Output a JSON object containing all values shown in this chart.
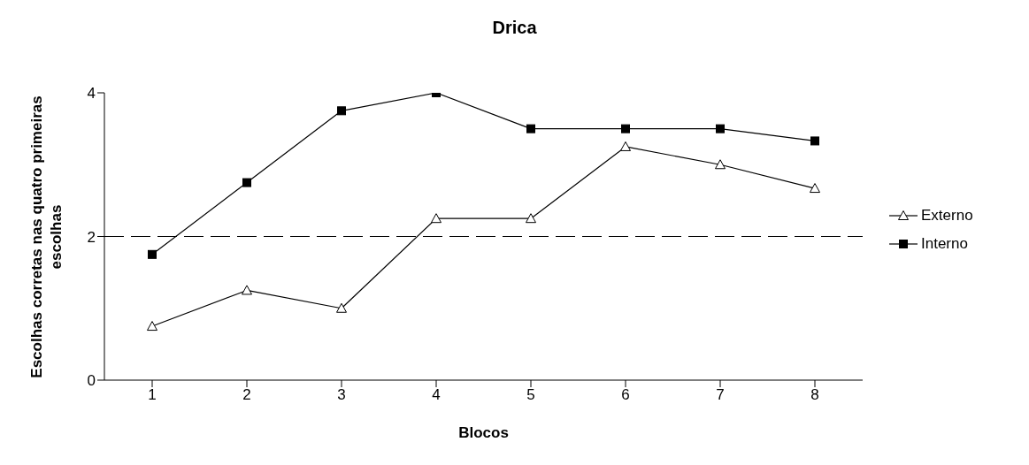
{
  "chart_data": {
    "type": "line",
    "title": "Drica",
    "xlabel": "Blocos",
    "ylabel": "Escolhas corretas nas quatro primeiras escolhas",
    "categories": [
      "1",
      "2",
      "3",
      "4",
      "5",
      "6",
      "7",
      "8"
    ],
    "series": [
      {
        "name": "Externo",
        "color": "#000000",
        "marker": "triangle",
        "values": [
          0.75,
          1.25,
          1,
          2.25,
          2.25,
          3.25,
          3,
          2.67
        ]
      },
      {
        "name": "Interno",
        "color": "#000000",
        "marker": "square",
        "values": [
          1.75,
          2.75,
          3.75,
          4,
          3.5,
          3.5,
          3.5,
          3.33
        ]
      }
    ],
    "ylim": [
      0,
      4
    ],
    "yticks": [
      0,
      2,
      4
    ],
    "grid": false,
    "legend": "right",
    "line_style": "solid",
    "ref_lines": [
      {
        "axis": "y",
        "value": 2,
        "color": "#000000",
        "line_style": "dashed"
      }
    ]
  }
}
